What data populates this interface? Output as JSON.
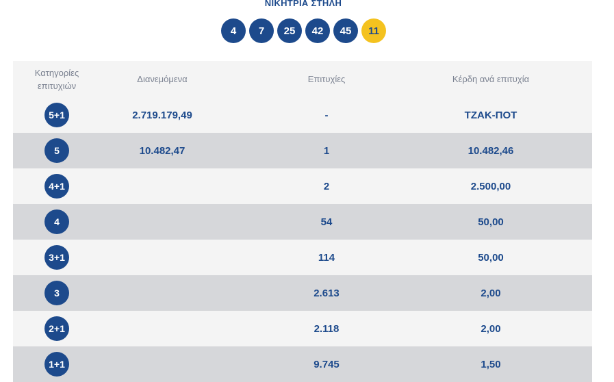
{
  "winning_title": "ΝΙΚΗΤΡΙΑ ΣΤΗΛΗ",
  "balls": [
    "4",
    "7",
    "25",
    "42",
    "45"
  ],
  "joker": "11",
  "colors": {
    "primary": "#1d4a8c",
    "joker": "#f4c21f",
    "row_light": "#f4f4f4",
    "row_dark": "#d6d7da"
  },
  "table": {
    "headers": {
      "category": "Κατηγορίες επιτυχιών",
      "distributed": "Διανεμόμενα",
      "winners": "Επιτυχίες",
      "prize": "Κέρδη ανά επιτυχία"
    },
    "rows": [
      {
        "category": "5+1",
        "distributed": "2.719.179,49",
        "winners": "-",
        "prize": "ΤΖΑΚ-ΠΟΤ"
      },
      {
        "category": "5",
        "distributed": "10.482,47",
        "winners": "1",
        "prize": "10.482,46"
      },
      {
        "category": "4+1",
        "distributed": "",
        "winners": "2",
        "prize": "2.500,00"
      },
      {
        "category": "4",
        "distributed": "",
        "winners": "54",
        "prize": "50,00"
      },
      {
        "category": "3+1",
        "distributed": "",
        "winners": "114",
        "prize": "50,00"
      },
      {
        "category": "3",
        "distributed": "",
        "winners": "2.613",
        "prize": "2,00"
      },
      {
        "category": "2+1",
        "distributed": "",
        "winners": "2.118",
        "prize": "2,00"
      },
      {
        "category": "1+1",
        "distributed": "",
        "winners": "9.745",
        "prize": "1,50"
      }
    ]
  }
}
